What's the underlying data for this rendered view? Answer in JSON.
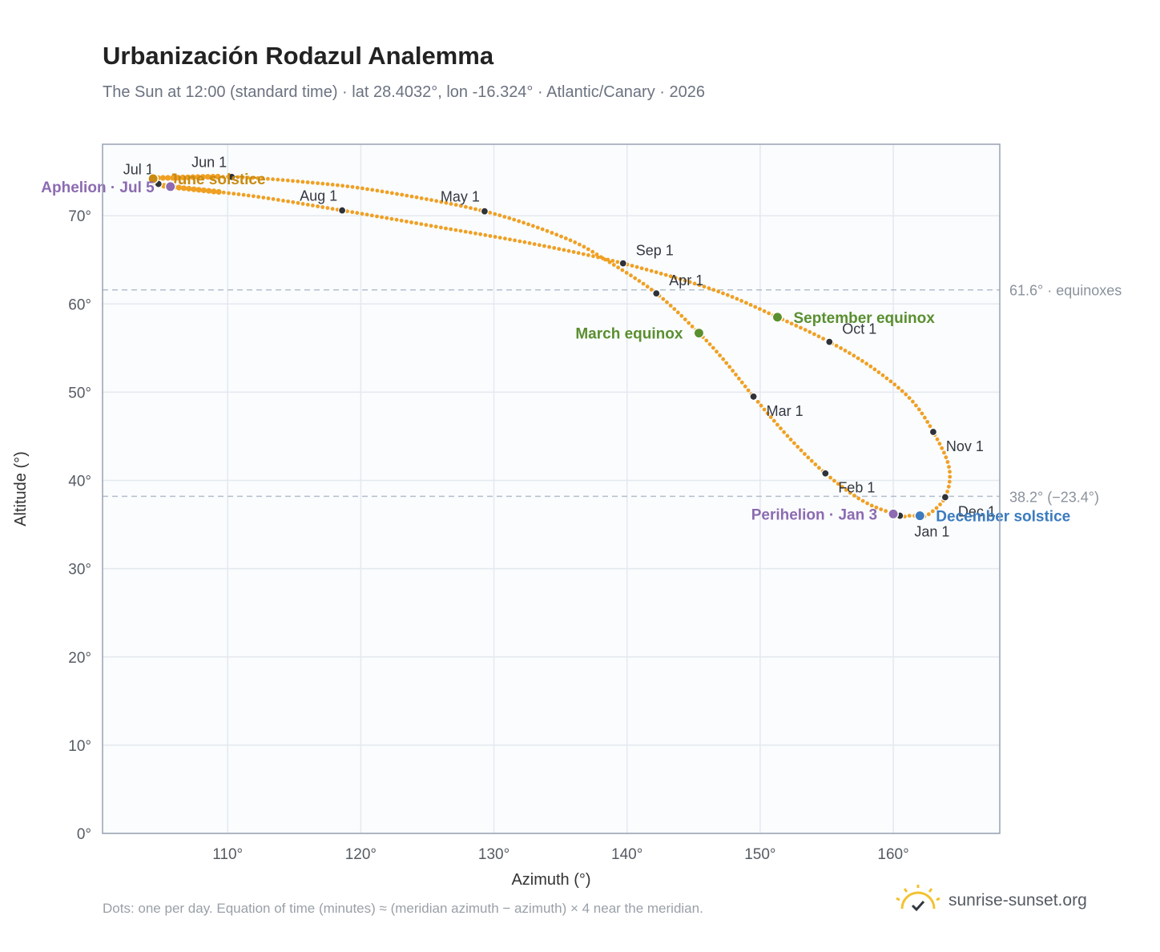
{
  "chart_data": {
    "type": "scatter",
    "title": "Urbanización Rodazul Analemma",
    "subtitle": "The Sun at 12:00 (standard time) · lat 28.4032°, lon -16.324° · Atlantic/Canary · 2026",
    "xlabel": "Azimuth (°)",
    "ylabel": "Altitude (°)",
    "xlim": [
      100.6,
      168.0
    ],
    "ylim": [
      0,
      78.1
    ],
    "x_ticks": [
      {
        "value": 110,
        "label": "110°"
      },
      {
        "value": 120,
        "label": "120°"
      },
      {
        "value": 130,
        "label": "130°"
      },
      {
        "value": 140,
        "label": "140°"
      },
      {
        "value": 150,
        "label": "150°"
      },
      {
        "value": 160,
        "label": "160°"
      }
    ],
    "y_ticks": [
      {
        "value": 0,
        "label": "0°"
      },
      {
        "value": 10,
        "label": "10°"
      },
      {
        "value": 20,
        "label": "20°"
      },
      {
        "value": 30,
        "label": "30°"
      },
      {
        "value": 40,
        "label": "40°"
      },
      {
        "value": 50,
        "label": "50°"
      },
      {
        "value": 60,
        "label": "60°"
      },
      {
        "value": 70,
        "label": "70°"
      }
    ],
    "grid": true,
    "reference_lines": [
      {
        "y": 61.6,
        "label": "61.6° · equinoxes"
      },
      {
        "y": 38.2,
        "label": "38.2° (−23.4°)"
      }
    ],
    "curve_color": "#f0a023",
    "month_markers": [
      {
        "label": "Jan 1",
        "x": 160.5,
        "y": 36.0,
        "label_pos": "below-right"
      },
      {
        "label": "Feb 1",
        "x": 154.9,
        "y": 40.8,
        "label_pos": "right-below"
      },
      {
        "label": "Mar 1",
        "x": 149.5,
        "y": 49.5,
        "label_pos": "right-below"
      },
      {
        "label": "Apr 1",
        "x": 142.2,
        "y": 61.2,
        "label_pos": "right-above"
      },
      {
        "label": "May 1",
        "x": 129.3,
        "y": 70.5,
        "label_pos": "left-above"
      },
      {
        "label": "Jun 1",
        "x": 110.3,
        "y": 74.4,
        "label_pos": "left-above"
      },
      {
        "label": "Jul 1",
        "x": 104.8,
        "y": 73.6,
        "label_pos": "left-above"
      },
      {
        "label": "Aug 1",
        "x": 118.6,
        "y": 70.6,
        "label_pos": "left-above"
      },
      {
        "label": "Sep 1",
        "x": 139.7,
        "y": 64.6,
        "label_pos": "right-above"
      },
      {
        "label": "Oct 1",
        "x": 155.2,
        "y": 55.7,
        "label_pos": "right-above"
      },
      {
        "label": "Nov 1",
        "x": 163.0,
        "y": 45.5,
        "label_pos": "right-below"
      },
      {
        "label": "Dec 1",
        "x": 163.9,
        "y": 38.1,
        "label_pos": "right-below"
      }
    ],
    "events": [
      {
        "label": "March equinox",
        "x": 145.4,
        "y": 56.7,
        "color": "#5a8f2f",
        "label_pos": "left"
      },
      {
        "label": "September equinox",
        "x": 151.3,
        "y": 58.5,
        "color": "#5a8f2f",
        "label_pos": "right"
      },
      {
        "label": "June solstice",
        "x": 104.4,
        "y": 74.2,
        "color": "#c98a10",
        "label_pos": "right"
      },
      {
        "label": "December solstice",
        "x": 162.0,
        "y": 36.0,
        "color": "#3b7bbf",
        "label_pos": "right"
      },
      {
        "label": "Aphelion · Jul 5",
        "x": 105.7,
        "y": 73.3,
        "color": "#8c6bb1",
        "label_pos": "left"
      },
      {
        "label": "Perihelion · Jan 3",
        "x": 160.0,
        "y": 36.2,
        "color": "#8c6bb1",
        "label_pos": "left"
      }
    ],
    "path_knots": [
      [
        160.5,
        36.0
      ],
      [
        157.8,
        37.6
      ],
      [
        154.9,
        40.8
      ],
      [
        152.2,
        44.8
      ],
      [
        149.5,
        49.5
      ],
      [
        147.3,
        53.6
      ],
      [
        145.4,
        56.7
      ],
      [
        142.2,
        61.2
      ],
      [
        138.5,
        64.9
      ],
      [
        135.3,
        67.5
      ],
      [
        129.3,
        70.5
      ],
      [
        121.0,
        72.9
      ],
      [
        115.2,
        73.9
      ],
      [
        110.3,
        74.4
      ],
      [
        106.0,
        74.3
      ],
      [
        104.4,
        74.2
      ],
      [
        104.8,
        73.6
      ],
      [
        105.7,
        73.3
      ],
      [
        112.0,
        72.2
      ],
      [
        118.6,
        70.6
      ],
      [
        125.5,
        68.8
      ],
      [
        133.0,
        66.8
      ],
      [
        139.7,
        64.6
      ],
      [
        146.5,
        61.6
      ],
      [
        151.3,
        58.5
      ],
      [
        155.2,
        55.7
      ],
      [
        158.5,
        52.7
      ],
      [
        161.3,
        49.2
      ],
      [
        163.0,
        45.5
      ],
      [
        164.2,
        41.4
      ],
      [
        163.9,
        38.1
      ],
      [
        162.6,
        36.1
      ],
      [
        162.0,
        36.0
      ],
      [
        161.0,
        36.0
      ],
      [
        160.5,
        36.0
      ]
    ],
    "summer_band": [
      109.5,
      104.3
    ]
  },
  "footnote": "Dots: one per day. Equation of time (minutes) ≈ (meridian azimuth − azimuth) × 4 near the meridian.",
  "brand": {
    "text": "sunrise-sunset.org",
    "icon": "sun-check-icon"
  }
}
